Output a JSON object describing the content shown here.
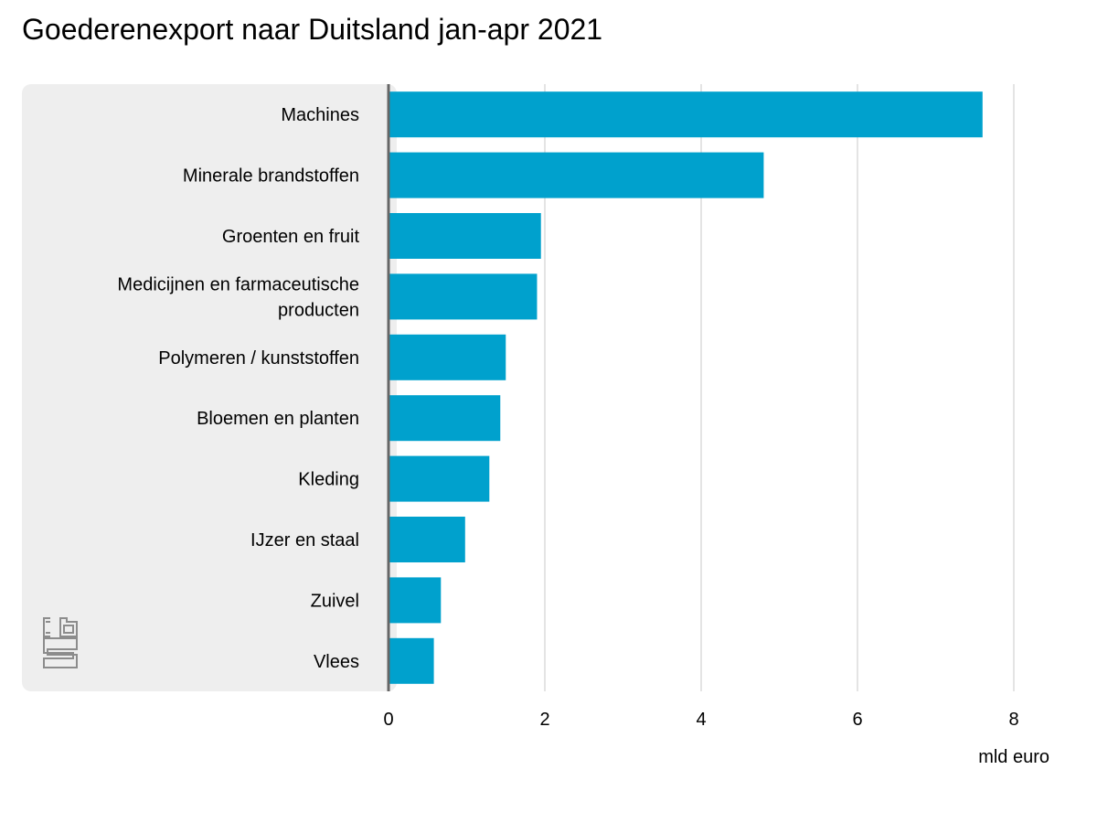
{
  "colors": {
    "bar": "#00a1cd",
    "label_panel": "#eeeeee",
    "gridline": "#c8c8c8",
    "axis": "#666666",
    "logo": "#8c8c8c"
  },
  "logo": {
    "icon": "cbs-logo",
    "text": "cbs"
  },
  "chart_data": {
    "type": "bar",
    "orientation": "horizontal",
    "title": "Goederenexport naar Duitsland jan-apr 2021",
    "xlabel": "mld euro",
    "ylabel": "",
    "xlim": [
      0,
      8
    ],
    "xticks": [
      "0",
      "2",
      "4",
      "6",
      "8"
    ],
    "grid": true,
    "categories": [
      "Machines",
      "Minerale brandstoffen",
      "Groenten en fruit",
      "Medicijnen en farmaceutische producten",
      "Polymeren / kunststoffen",
      "Bloemen en planten",
      "Kleding",
      "IJzer en staal",
      "Zuivel",
      "Vlees"
    ],
    "category_lines": [
      [
        "Machines"
      ],
      [
        "Minerale brandstoffen"
      ],
      [
        "Groenten en fruit"
      ],
      [
        "Medicijnen en farmaceutische",
        "producten"
      ],
      [
        "Polymeren / kunststoffen"
      ],
      [
        "Bloemen en planten"
      ],
      [
        "Kleding"
      ],
      [
        "IJzer en staal"
      ],
      [
        "Zuivel"
      ],
      [
        "Vlees"
      ]
    ],
    "values": [
      7.6,
      4.8,
      1.95,
      1.9,
      1.5,
      1.43,
      1.29,
      0.98,
      0.67,
      0.58
    ]
  }
}
